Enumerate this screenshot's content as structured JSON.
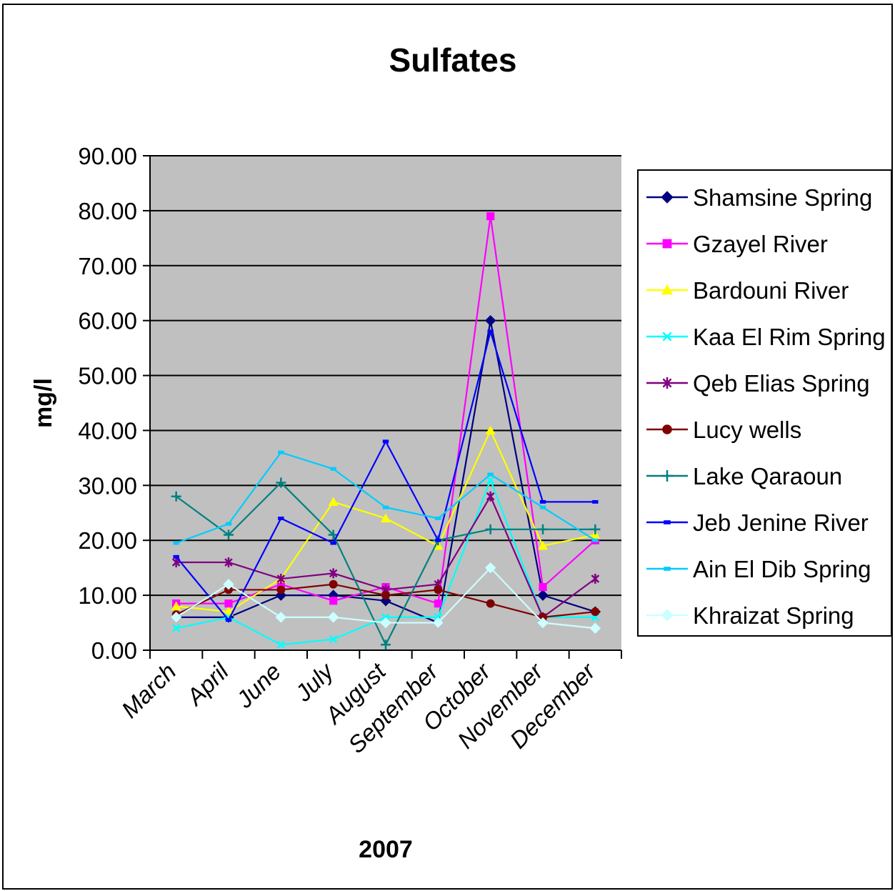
{
  "chart_data": {
    "type": "line",
    "title": "Sulfates",
    "xlabel": "2007",
    "ylabel": "mg/l",
    "ylim": [
      0,
      90
    ],
    "yticks": [
      0,
      10,
      20,
      30,
      40,
      50,
      60,
      70,
      80,
      90
    ],
    "ytick_labels": [
      "0.00",
      "10.00",
      "20.00",
      "30.00",
      "40.00",
      "50.00",
      "60.00",
      "70.00",
      "80.00",
      "90.00"
    ],
    "grid": true,
    "legend_position": "right",
    "categories": [
      "March",
      "April",
      "June",
      "July",
      "August",
      "September",
      "October",
      "November",
      "December"
    ],
    "series": [
      {
        "name": "Shamsine Spring",
        "color": "#000080",
        "marker": "diamond",
        "values": [
          6,
          6,
          10,
          10,
          9,
          5,
          60,
          10,
          7
        ]
      },
      {
        "name": "Gzayel River",
        "color": "#FF00FF",
        "marker": "square",
        "values": [
          8.5,
          8.5,
          12,
          9,
          11.5,
          8.5,
          79,
          11.5,
          20
        ]
      },
      {
        "name": "Bardouni River",
        "color": "#FFFF00",
        "marker": "triangle",
        "values": [
          8,
          7,
          13,
          27,
          24,
          19,
          40,
          19,
          21
        ]
      },
      {
        "name": "Kaa El Rim Spring",
        "color": "#00FFFF",
        "marker": "x",
        "values": [
          4,
          6,
          1,
          2,
          6,
          6,
          31,
          6,
          6
        ]
      },
      {
        "name": "Qeb Elias Spring",
        "color": "#800080",
        "marker": "star",
        "values": [
          16,
          16,
          13,
          14,
          11,
          12,
          28,
          6,
          13
        ]
      },
      {
        "name": "Lucy wells",
        "color": "#800000",
        "marker": "circle",
        "values": [
          6.5,
          11,
          11,
          12,
          10,
          11,
          8.5,
          6,
          7
        ]
      },
      {
        "name": "Lake Qaraoun",
        "color": "#008080",
        "marker": "plus",
        "values": [
          28,
          21,
          30.5,
          21,
          1,
          20,
          22,
          22,
          22
        ]
      },
      {
        "name": "Jeb Jenine River",
        "color": "#0000FF",
        "marker": "dash",
        "values": [
          17,
          5.5,
          24,
          19.5,
          38,
          20,
          58,
          27,
          27
        ]
      },
      {
        "name": "Ain El Dib Spring",
        "color": "#00CCFF",
        "marker": "dash",
        "values": [
          19.5,
          23,
          36,
          33,
          26,
          24,
          32,
          26,
          20
        ]
      },
      {
        "name": "Khraizat Spring",
        "color": "#CCFFFF",
        "marker": "diamond",
        "values": [
          6,
          12,
          6,
          6,
          5,
          5,
          15,
          5,
          4
        ]
      }
    ]
  }
}
